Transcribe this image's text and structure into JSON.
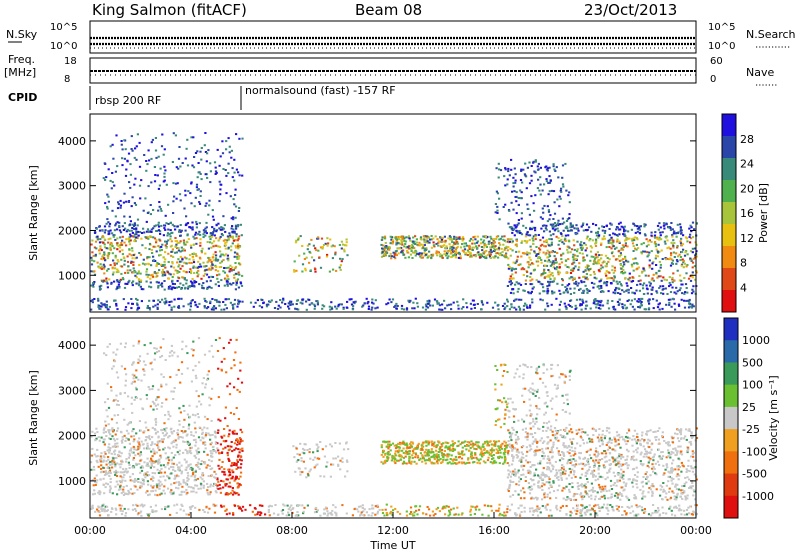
{
  "header": {
    "radar": "King Salmon (fitACF)",
    "beam": "Beam 08",
    "date": "23/Oct/2013"
  },
  "top_panels": {
    "nsky_label": "N.Sky",
    "nsky_ticks": [
      "10^5",
      "10^0"
    ],
    "nsearch_label": "N.Search",
    "nsearch_ticks": [
      "10^5",
      "10^0"
    ],
    "freq_label_1": "Freq.",
    "freq_label_2": "[MHz]",
    "freq_ticks": [
      "18",
      "8"
    ],
    "nave_label": "Nave",
    "nave_ticks": [
      "60",
      "0"
    ],
    "cpid_label": "CPID",
    "cpid_segments": [
      "rbsp 200 RF",
      "normalsound (fast) -157 RF"
    ]
  },
  "chart_data": [
    {
      "type": "heatmap",
      "name": "power-panel",
      "ylabel": "Slant Range [km]",
      "y_ticks": [
        "4000",
        "3000",
        "2000",
        "1000"
      ],
      "colorbar_label": "Power [dB]",
      "colorbar_ticks": [
        "28",
        "24",
        "20",
        "16",
        "12",
        "8",
        "4"
      ],
      "colors": [
        "#1f10e0",
        "#2a46a8",
        "#3a8a7a",
        "#4fb04e",
        "#a8c43a",
        "#e8c010",
        "#f08a10",
        "#e04818",
        "#e01010"
      ],
      "ylim": [
        180,
        4600
      ]
    },
    {
      "type": "heatmap",
      "name": "velocity-panel",
      "ylabel": "Slant Range [km]",
      "y_ticks": [
        "4000",
        "3000",
        "2000",
        "1000"
      ],
      "xlabel": "Time UT",
      "x_ticks": [
        "00:00",
        "04:00",
        "08:00",
        "12:00",
        "16:00",
        "20:00",
        "00:00"
      ],
      "colorbar_label": "Velocity [m s⁻¹]",
      "colorbar_ticks": [
        "1000",
        "500",
        "100",
        "25",
        "-25",
        "-100",
        "-500",
        "-1000"
      ],
      "colors": [
        "#1f30c0",
        "#2a6aa8",
        "#3a9a5a",
        "#6ac030",
        "#c8c8c8",
        "#f0a020",
        "#f07010",
        "#e03a10",
        "#e01010"
      ],
      "ylim": [
        180,
        4600
      ],
      "xlim": [
        0,
        24
      ]
    }
  ]
}
